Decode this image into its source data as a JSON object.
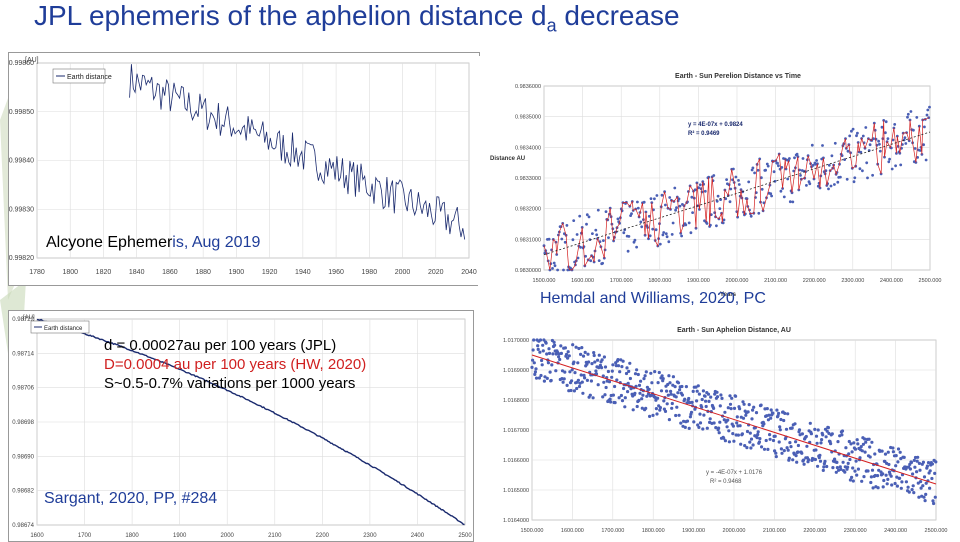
{
  "slide": {
    "title_main": "JPL ephemeris of the aphelion distance d",
    "title_sub": "a",
    "title_end": " decrease",
    "captions": {
      "alcyone_a": "Alcyone Ephemer",
      "alcyone_b": "is, Aug 2019",
      "hemdal": "Hemdal and Williams, 2020, PC",
      "sargant": "Sargant, 2020, PP, #284"
    },
    "notes": [
      "d = 0.00027au per 100 years (JPL)",
      "D=0.0004 au per 100 years (HW, 2020)",
      "S~0.5-0.7% variations per 1000 years"
    ]
  },
  "colors": {
    "title": "#1f3d99",
    "blue_series": "#4a5fb5",
    "red_series": "#d42020",
    "navy_series": "#1a2a6e",
    "note_red": "#d02020"
  },
  "chart_data": [
    {
      "id": "alcyone",
      "type": "line",
      "legend": [
        "Earth distance"
      ],
      "ylabel": "[AU]",
      "x_ticks": [
        "1780",
        "1800",
        "1820",
        "1840",
        "1860",
        "1880",
        "1900",
        "1920",
        "1940",
        "1960",
        "1980",
        "2000",
        "2020",
        "2040"
      ],
      "y_ticks": [
        "0.99860",
        "0.99850",
        "0.99840",
        "0.99830",
        "0.99820"
      ],
      "x_range": [
        1770,
        2050
      ],
      "y_range": [
        0.99815,
        0.99862
      ],
      "trend": {
        "start": [
          1770,
          0.99868
        ],
        "end": [
          2050,
          0.99822
        ],
        "amplitude": 4.5e-05
      }
    },
    {
      "id": "hemdal_perihelion",
      "type": "scatter",
      "title": "Earth - Sun Perelion Distance vs Time",
      "xlabel": "Years",
      "ylabel": "Distance AU",
      "x_ticks": [
        "1500.000",
        "1600.000",
        "1700.000",
        "1800.000",
        "1900.000",
        "2000.000",
        "2100.000",
        "2200.000",
        "2300.000",
        "2400.000",
        "2500.000"
      ],
      "y_ticks": [
        "0.9836000",
        "0.9835000",
        "0.9834000",
        "0.9833000",
        "0.9832000",
        "0.9831000",
        "0.9830000"
      ],
      "x_range": [
        1500,
        2500
      ],
      "y_range": [
        0.983,
        0.9836
      ],
      "trend_eq": "y = 4E-07x + 0.9824",
      "r2": "R² = 0.9469",
      "trend": {
        "start": [
          1500,
          0.98305
        ],
        "end": [
          2500,
          0.98345
        ],
        "amplitude": 9e-05
      }
    },
    {
      "id": "sargant",
      "type": "line",
      "legend": [
        "Earth distance"
      ],
      "ylabel": "[AU]",
      "x_ticks": [
        "1600",
        "1700",
        "1800",
        "1900",
        "2000",
        "2100",
        "2200",
        "2300",
        "2400",
        "2500"
      ],
      "y_ticks": [
        "0.98722",
        "0.98714",
        "0.98706",
        "0.98698",
        "0.98690",
        "0.98682",
        "0.98674"
      ],
      "x_range": [
        1580,
        2520
      ],
      "y_range": [
        0.9867,
        0.98724
      ],
      "trend": {
        "start": [
          1580,
          0.98724
        ],
        "end": [
          2520,
          0.9867
        ],
        "amplitude": 1.5e-06
      }
    },
    {
      "id": "hemdal_aphelion",
      "type": "scatter",
      "title": "Earth - Sun Aphelion Distance, AU",
      "x_ticks": [
        "1500.000",
        "1600.000",
        "1700.000",
        "1800.000",
        "1900.000",
        "2000.000",
        "2100.000",
        "2200.000",
        "2300.000",
        "2400.000",
        "2500.000"
      ],
      "y_ticks": [
        "1.0170000",
        "1.0169000",
        "1.0168000",
        "1.0167000",
        "1.0166000",
        "1.0165000",
        "1.0164000"
      ],
      "x_range": [
        1500,
        2500
      ],
      "y_range": [
        1.0164,
        1.017
      ],
      "trend_eq": "y = -4E-07x + 1.0176",
      "r2": "R² = 0.9468",
      "trend": {
        "start": [
          1500,
          1.01695
        ],
        "end": [
          2500,
          1.01652
        ],
        "amplitude": 8e-05
      }
    }
  ]
}
